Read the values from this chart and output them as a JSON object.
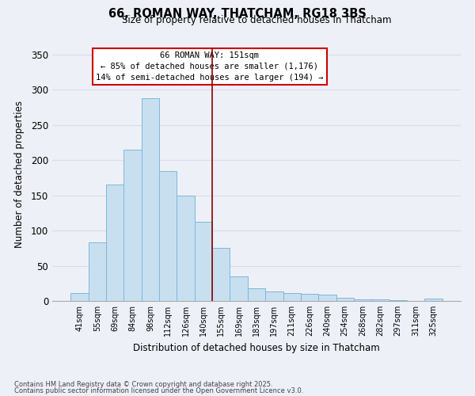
{
  "title": "66, ROMAN WAY, THATCHAM, RG18 3BS",
  "subtitle": "Size of property relative to detached houses in Thatcham",
  "xlabel": "Distribution of detached houses by size in Thatcham",
  "ylabel": "Number of detached properties",
  "bar_labels": [
    "41sqm",
    "55sqm",
    "69sqm",
    "84sqm",
    "98sqm",
    "112sqm",
    "126sqm",
    "140sqm",
    "155sqm",
    "169sqm",
    "183sqm",
    "197sqm",
    "211sqm",
    "226sqm",
    "240sqm",
    "254sqm",
    "268sqm",
    "282sqm",
    "297sqm",
    "311sqm",
    "325sqm"
  ],
  "bar_values": [
    11,
    83,
    165,
    215,
    288,
    185,
    150,
    113,
    75,
    35,
    18,
    13,
    11,
    10,
    9,
    5,
    2,
    2,
    1,
    0,
    3
  ],
  "bar_color": "#c8dff0",
  "bar_edge_color": "#7db8d8",
  "ylim": [
    0,
    360
  ],
  "yticks": [
    0,
    50,
    100,
    150,
    200,
    250,
    300,
    350
  ],
  "vline_index": 7.5,
  "property_line_label": "66 ROMAN WAY: 151sqm",
  "annotation_line1": "← 85% of detached houses are smaller (1,176)",
  "annotation_line2": "14% of semi-detached houses are larger (194) →",
  "footnote1": "Contains HM Land Registry data © Crown copyright and database right 2025.",
  "footnote2": "Contains public sector information licensed under the Open Government Licence v3.0.",
  "background_color": "#eef0f8",
  "grid_color": "#d8dde8",
  "annotation_box_color": "#ffffff",
  "annotation_box_edge": "#cc0000",
  "vline_color": "#8b0000"
}
